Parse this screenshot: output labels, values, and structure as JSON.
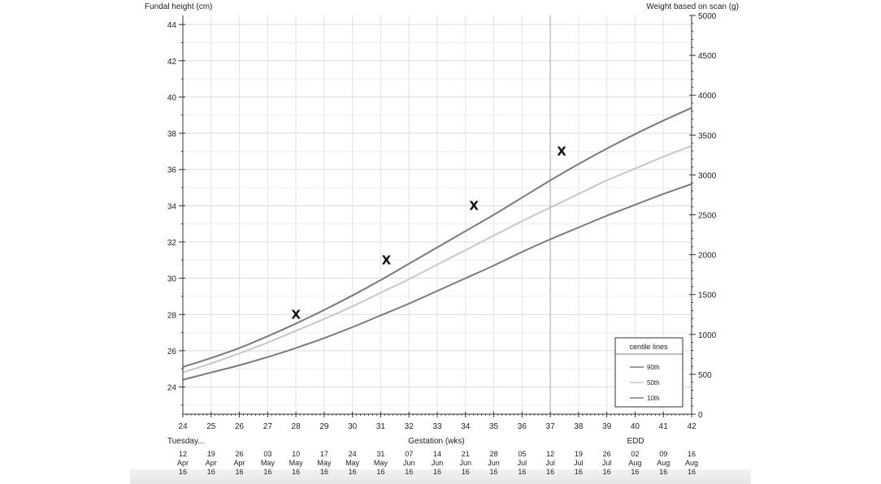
{
  "chart_data": {
    "type": "line",
    "left_axis": {
      "label": "Fundal height (cm)",
      "range": [
        22.5,
        44.5
      ],
      "ticks": [
        24,
        26,
        28,
        30,
        32,
        34,
        36,
        38,
        40,
        42,
        44
      ]
    },
    "right_axis": {
      "label": "Weight based on scan (g)",
      "range": [
        0,
        5000
      ],
      "ticks": [
        0,
        500,
        1000,
        1500,
        2000,
        2500,
        3000,
        3500,
        4000,
        4500,
        5000
      ]
    },
    "x_axis": {
      "label": "Gestation (wks)",
      "range": [
        24,
        42
      ],
      "ticks": [
        24,
        25,
        26,
        27,
        28,
        29,
        30,
        31,
        32,
        33,
        34,
        35,
        36,
        37,
        38,
        39,
        40,
        41,
        42
      ]
    },
    "grid": true,
    "vertical_marker_week": 37,
    "start_label": "Tuesday...",
    "edd_label": "EDD",
    "date_labels": [
      {
        "day": "12",
        "month": "Apr",
        "year": "16"
      },
      {
        "day": "19",
        "month": "Apr",
        "year": "16"
      },
      {
        "day": "26",
        "month": "Apr",
        "year": "16"
      },
      {
        "day": "03",
        "month": "May",
        "year": "16"
      },
      {
        "day": "10",
        "month": "May",
        "year": "16"
      },
      {
        "day": "17",
        "month": "May",
        "year": "16"
      },
      {
        "day": "24",
        "month": "May",
        "year": "16"
      },
      {
        "day": "31",
        "month": "May",
        "year": "16"
      },
      {
        "day": "07",
        "month": "Jun",
        "year": "16"
      },
      {
        "day": "14",
        "month": "Jun",
        "year": "16"
      },
      {
        "day": "21",
        "month": "Jun",
        "year": "16"
      },
      {
        "day": "28",
        "month": "Jun",
        "year": "16"
      },
      {
        "day": "05",
        "month": "Jul",
        "year": "16"
      },
      {
        "day": "12",
        "month": "Jul",
        "year": "16"
      },
      {
        "day": "19",
        "month": "Jul",
        "year": "16"
      },
      {
        "day": "26",
        "month": "Jul",
        "year": "16"
      },
      {
        "day": "02",
        "month": "Aug",
        "year": "16"
      },
      {
        "day": "09",
        "month": "Aug",
        "year": "16"
      },
      {
        "day": "16",
        "month": "Aug",
        "year": "16"
      }
    ],
    "series": [
      {
        "name": "90th",
        "color": "#7a7a7a",
        "x": [
          24,
          25,
          26,
          27,
          28,
          29,
          30,
          31,
          32,
          33,
          34,
          35,
          36,
          37,
          38,
          39,
          40,
          41,
          42
        ],
        "y": [
          25.1,
          25.6,
          26.15,
          26.8,
          27.5,
          28.25,
          29.05,
          29.9,
          30.8,
          31.7,
          32.6,
          33.5,
          34.45,
          35.4,
          36.3,
          37.15,
          37.95,
          38.7,
          39.4
        ]
      },
      {
        "name": "50th",
        "color": "#c8c8c8",
        "x": [
          24,
          25,
          26,
          27,
          28,
          29,
          30,
          31,
          32,
          33,
          34,
          35,
          36,
          37,
          38,
          39,
          40,
          41,
          42
        ],
        "y": [
          24.8,
          25.3,
          25.85,
          26.45,
          27.1,
          27.75,
          28.45,
          29.2,
          29.95,
          30.75,
          31.55,
          32.35,
          33.15,
          33.9,
          34.65,
          35.4,
          36.05,
          36.7,
          37.3
        ]
      },
      {
        "name": "10th",
        "color": "#7a7a7a",
        "x": [
          24,
          25,
          26,
          27,
          28,
          29,
          30,
          31,
          32,
          33,
          34,
          35,
          36,
          37,
          38,
          39,
          40,
          41,
          42
        ],
        "y": [
          24.4,
          24.8,
          25.2,
          25.65,
          26.15,
          26.7,
          27.3,
          27.95,
          28.6,
          29.3,
          30.0,
          30.7,
          31.45,
          32.15,
          32.8,
          33.45,
          34.05,
          34.65,
          35.2
        ]
      }
    ],
    "measurements": {
      "symbol": "X",
      "points": [
        {
          "x": 28.0,
          "y": 28.0
        },
        {
          "x": 31.2,
          "y": 31.0
        },
        {
          "x": 34.3,
          "y": 34.0
        },
        {
          "x": 37.4,
          "y": 37.0
        }
      ]
    },
    "legend": {
      "title": "centile lines",
      "position": "bottom-right",
      "entries": [
        "90th",
        "50th",
        "10th"
      ]
    }
  }
}
